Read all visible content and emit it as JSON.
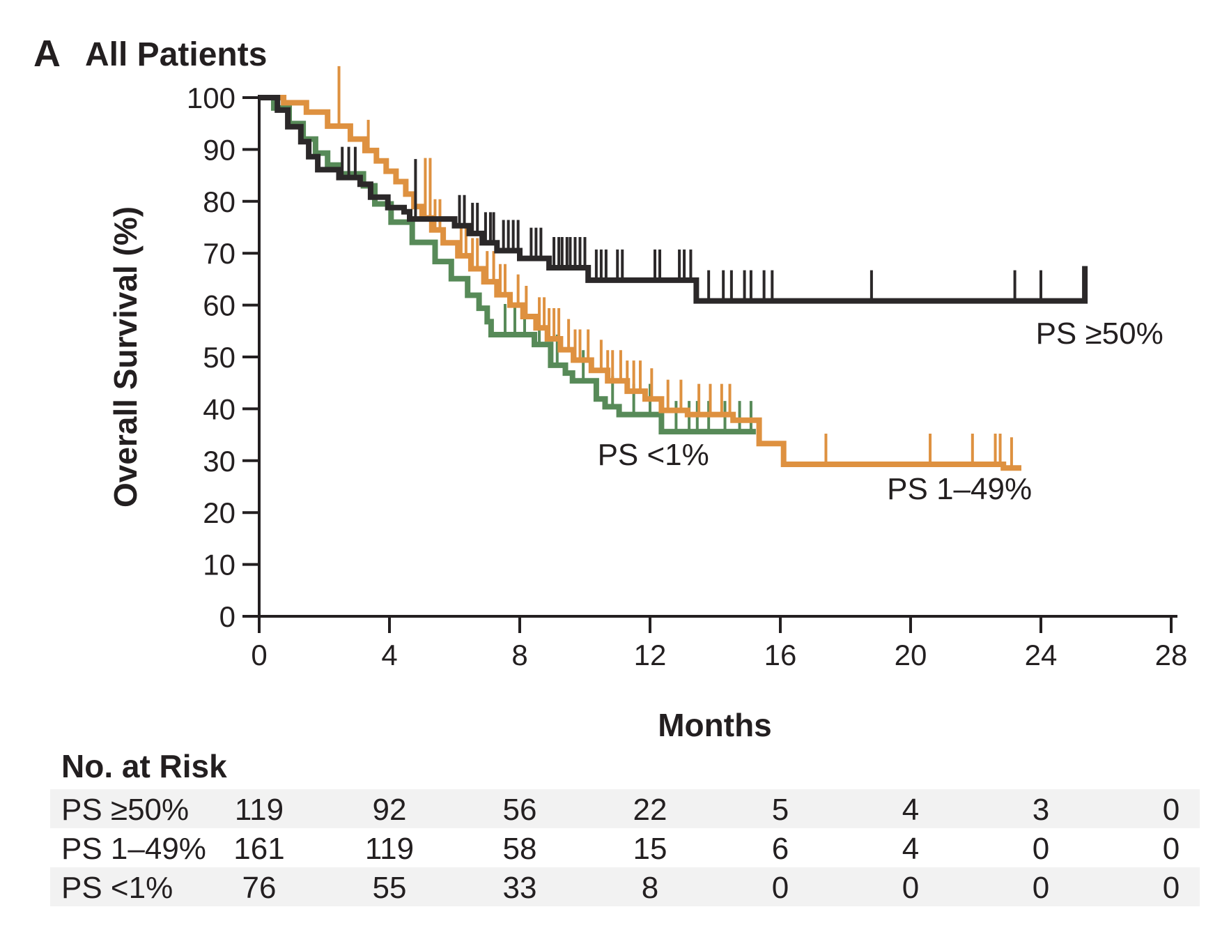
{
  "title": {
    "panel": "A",
    "text": "All Patients"
  },
  "axes": {
    "x": {
      "label": "Months",
      "min": 0,
      "max": 28,
      "ticks": [
        0,
        4,
        8,
        12,
        16,
        20,
        24,
        28
      ]
    },
    "y": {
      "label": "Overall Survival (%)",
      "min": 0,
      "max": 100,
      "ticks": [
        0,
        10,
        20,
        30,
        40,
        50,
        60,
        70,
        80,
        90,
        100
      ]
    }
  },
  "colors": {
    "black_series": "#2B2829",
    "orange_series": "#DE9140",
    "green_series": "#578A58",
    "axis": "#231F20",
    "row_band": "#F2F2F2"
  },
  "chart_data": {
    "type": "line",
    "subtype": "kaplan_meier_step",
    "title": "All Patients",
    "xlabel": "Months",
    "ylabel": "Overall Survival (%)",
    "xlim": [
      0,
      28
    ],
    "ylim": [
      0,
      100
    ],
    "grid": false,
    "legend_position": "inline-annotations",
    "series": [
      {
        "name": "PS ≥50%",
        "color": "#2B2829",
        "steps": [
          [
            0,
            100
          ],
          [
            0.56,
            97.6
          ],
          [
            0.88,
            94.4
          ],
          [
            1.28,
            91.5
          ],
          [
            1.52,
            88.6
          ],
          [
            1.8,
            86.1
          ],
          [
            2.45,
            84.6
          ],
          [
            3.1,
            83.3
          ],
          [
            3.42,
            80.8
          ],
          [
            3.95,
            78.8
          ],
          [
            4.45,
            78.0
          ],
          [
            4.62,
            76.6
          ],
          [
            6.0,
            75.3
          ],
          [
            6.45,
            73.8
          ],
          [
            6.85,
            72.0
          ],
          [
            7.3,
            70.5
          ],
          [
            8.0,
            69.0
          ],
          [
            8.9,
            67.2
          ],
          [
            10.1,
            64.8
          ],
          [
            13.42,
            60.8
          ]
        ],
        "end_month": 25.35,
        "end_tick": true,
        "censor_ticks": [
          2.55,
          2.75,
          2.95,
          6.15,
          6.3,
          6.55,
          6.7,
          6.95,
          7.1,
          7.2,
          7.5,
          7.65,
          7.8,
          7.95,
          8.35,
          8.5,
          8.65,
          9.05,
          9.2,
          9.3,
          9.45,
          9.55,
          9.7,
          9.85,
          10.0,
          10.35,
          10.5,
          10.65,
          11.0,
          11.15,
          12.15,
          12.3,
          12.9,
          13.05,
          13.25,
          13.8,
          14.25,
          14.5,
          14.9,
          15.1,
          15.5,
          15.75,
          18.8,
          23.2,
          24.0
        ],
        "censor_ticks_tall": [
          4.8
        ],
        "label": {
          "text": "PS ≥50%",
          "x_month": 25.8,
          "y_pct": 54.6
        }
      },
      {
        "name": "PS 1–49%",
        "color": "#DE9140",
        "steps": [
          [
            0,
            100
          ],
          [
            0.75,
            99.0
          ],
          [
            1.45,
            97.2
          ],
          [
            2.1,
            94.5
          ],
          [
            2.8,
            92.0
          ],
          [
            3.25,
            89.8
          ],
          [
            3.6,
            87.8
          ],
          [
            3.9,
            85.8
          ],
          [
            4.2,
            83.8
          ],
          [
            4.5,
            81.4
          ],
          [
            4.75,
            79.0
          ],
          [
            5.0,
            76.8
          ],
          [
            5.3,
            74.5
          ],
          [
            5.65,
            72.0
          ],
          [
            6.1,
            69.5
          ],
          [
            6.5,
            67.0
          ],
          [
            6.9,
            64.5
          ],
          [
            7.3,
            62.0
          ],
          [
            7.7,
            60.0
          ],
          [
            8.1,
            57.8
          ],
          [
            8.5,
            55.6
          ],
          [
            8.85,
            53.5
          ],
          [
            9.25,
            51.4
          ],
          [
            9.65,
            49.4
          ],
          [
            10.2,
            47.4
          ],
          [
            10.7,
            45.4
          ],
          [
            11.3,
            43.4
          ],
          [
            11.85,
            41.9
          ],
          [
            12.35,
            39.7
          ],
          [
            13.15,
            38.9
          ],
          [
            14.55,
            37.8
          ],
          [
            15.35,
            33.3
          ],
          [
            16.1,
            29.3
          ],
          [
            22.85,
            28.6
          ]
        ],
        "end_month": 23.4,
        "end_tick": false,
        "censor_ticks": [
          3.35,
          5.4,
          5.55,
          6.2,
          6.35,
          6.55,
          6.7,
          7.0,
          7.2,
          7.4,
          7.55,
          7.95,
          8.2,
          8.6,
          8.75,
          8.9,
          9.05,
          9.2,
          9.5,
          9.7,
          9.85,
          10.1,
          10.5,
          10.7,
          10.85,
          11.1,
          11.3,
          11.5,
          11.7,
          12.05,
          12.55,
          12.95,
          13.5,
          13.85,
          14.2,
          14.45,
          17.4,
          20.6,
          21.9,
          22.6,
          22.75,
          23.1
        ],
        "censor_ticks_tall": [
          2.45,
          5.1,
          5.25
        ],
        "label": {
          "text": "PS 1–49%",
          "x_month": 21.5,
          "y_pct": 24.6
        }
      },
      {
        "name": "PS <1%",
        "color": "#578A58",
        "steps": [
          [
            0,
            100
          ],
          [
            0.45,
            98.0
          ],
          [
            0.92,
            95.0
          ],
          [
            1.35,
            92.0
          ],
          [
            1.73,
            89.3
          ],
          [
            2.1,
            87.0
          ],
          [
            2.5,
            85.3
          ],
          [
            3.2,
            83.0
          ],
          [
            3.55,
            79.5
          ],
          [
            4.05,
            76.0
          ],
          [
            4.7,
            72.1
          ],
          [
            5.4,
            68.4
          ],
          [
            5.9,
            65.1
          ],
          [
            6.4,
            61.9
          ],
          [
            6.75,
            59.4
          ],
          [
            7.0,
            56.8
          ],
          [
            7.12,
            54.3
          ],
          [
            8.45,
            52.4
          ],
          [
            8.95,
            48.4
          ],
          [
            9.4,
            46.9
          ],
          [
            9.62,
            45.4
          ],
          [
            10.35,
            41.9
          ],
          [
            10.62,
            40.4
          ],
          [
            11.05,
            38.9
          ],
          [
            12.35,
            35.6
          ]
        ],
        "end_month": 15.25,
        "end_tick": false,
        "censor_ticks": [
          7.55,
          7.85,
          8.15,
          8.6,
          9.15,
          9.95,
          10.85,
          11.5,
          12.0,
          12.8,
          13.2,
          13.45,
          13.8,
          14.3,
          14.75,
          15.1
        ],
        "censor_ticks_tall": [],
        "label": {
          "text": "PS <1%",
          "x_month": 12.1,
          "y_pct": 31.2
        }
      }
    ]
  },
  "risk_table": {
    "header": "No. at Risk",
    "time_points": [
      0,
      4,
      8,
      12,
      16,
      20,
      24,
      28
    ],
    "rows": [
      {
        "label": "PS ≥50%",
        "counts": [
          119,
          92,
          56,
          22,
          5,
          4,
          3,
          0
        ]
      },
      {
        "label": "PS 1–49%",
        "counts": [
          161,
          119,
          58,
          15,
          6,
          4,
          0,
          0
        ]
      },
      {
        "label": "PS <1%",
        "counts": [
          76,
          55,
          33,
          8,
          0,
          0,
          0,
          0
        ]
      }
    ]
  }
}
